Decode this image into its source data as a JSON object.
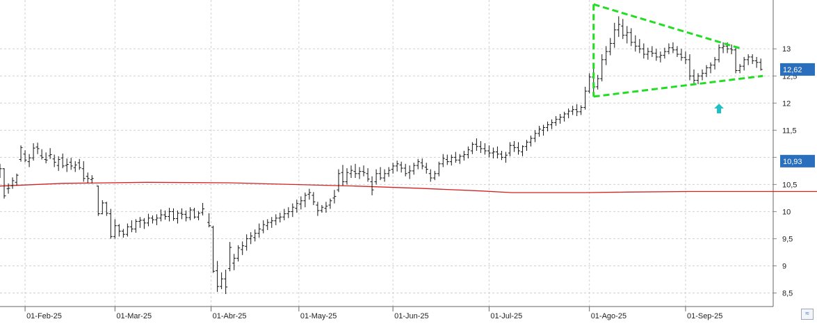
{
  "chart_data": {
    "type": "ohlc",
    "title": "",
    "xlabel": "",
    "ylabel": "",
    "ylim": [
      8.25,
      13.9
    ],
    "y_ticks": [
      "8,5",
      "9",
      "9,5",
      "10",
      "10,5",
      "11",
      "11,5",
      "12",
      "12,5",
      "13"
    ],
    "x_tick_labels": [
      "01-Feb-25",
      "01-Mar-25",
      "01-Abr-25",
      "01-May-25",
      "01-Jun-25",
      "01-Jul-25",
      "01-Ago-25",
      "01-Sep-25"
    ],
    "grid": true,
    "last_price": 12.62,
    "last_price_label": "12,62",
    "moving_average_label": "10,93",
    "moving_average": {
      "color": "#d42020",
      "points": [
        [
          0,
          10.47
        ],
        [
          30,
          10.52
        ],
        [
          70,
          10.54
        ],
        [
          110,
          10.53
        ],
        [
          140,
          10.5
        ],
        [
          170,
          10.47
        ],
        [
          200,
          10.43
        ],
        [
          230,
          10.38
        ],
        [
          245,
          10.35
        ],
        [
          260,
          10.35
        ],
        [
          280,
          10.35
        ],
        [
          300,
          10.36
        ],
        [
          330,
          10.37
        ],
        [
          360,
          10.37
        ],
        [
          390,
          10.37
        ],
        [
          420,
          10.37
        ],
        [
          440,
          10.36
        ],
        [
          460,
          10.37
        ],
        [
          475,
          10.4
        ],
        [
          490,
          10.43
        ],
        [
          505,
          10.5
        ],
        [
          520,
          10.56
        ],
        [
          535,
          10.62
        ],
        [
          550,
          10.68
        ],
        [
          565,
          10.74
        ],
        [
          580,
          10.78
        ],
        [
          595,
          10.82
        ],
        [
          610,
          10.87
        ],
        [
          630,
          10.93
        ]
      ]
    },
    "ohlc_bars": [
      [
        0,
        10.71,
        10.88,
        10.62,
        10.79
      ],
      [
        2,
        10.79,
        10.8,
        10.24,
        10.29
      ],
      [
        4,
        10.42,
        10.52,
        10.33,
        10.43
      ],
      [
        6,
        10.48,
        10.63,
        10.42,
        10.57
      ],
      [
        8,
        10.54,
        10.7,
        10.48,
        10.67
      ],
      [
        10,
        10.96,
        11.22,
        10.92,
        11.18
      ],
      [
        12,
        11.06,
        11.13,
        10.91,
        10.95
      ],
      [
        14,
        10.92,
        11.06,
        10.82,
        10.99
      ],
      [
        16,
        10.99,
        11.26,
        10.94,
        11.17
      ],
      [
        18,
        11.19,
        11.27,
        11.06,
        11.16
      ],
      [
        20,
        11.03,
        11.15,
        10.96,
        11.0
      ],
      [
        22,
        10.96,
        11.09,
        10.89,
        10.95
      ],
      [
        24,
        11.03,
        11.17,
        10.97,
        11.05
      ],
      [
        26,
        10.97,
        11.05,
        10.82,
        10.91
      ],
      [
        28,
        10.85,
        11.02,
        10.75,
        10.96
      ],
      [
        30,
        10.99,
        11.07,
        10.8,
        10.84
      ],
      [
        32,
        10.85,
        10.98,
        10.73,
        10.87
      ],
      [
        34,
        10.91,
        10.99,
        10.77,
        10.84
      ],
      [
        36,
        10.81,
        10.93,
        10.73,
        10.86
      ],
      [
        38,
        10.9,
        10.97,
        10.77,
        10.81
      ],
      [
        40,
        10.79,
        10.93,
        10.55,
        10.61
      ],
      [
        42,
        10.65,
        10.72,
        10.53,
        10.61
      ],
      [
        44,
        10.59,
        10.67,
        10.52,
        10.61
      ],
      [
        47,
        10.47,
        10.48,
        9.92,
        9.96
      ],
      [
        49,
        9.96,
        10.21,
        9.95,
        10.16
      ],
      [
        51,
        10.16,
        10.18,
        9.92,
        9.97
      ],
      [
        53,
        9.96,
        10.05,
        9.5,
        9.54
      ],
      [
        55,
        9.54,
        9.86,
        9.5,
        9.74
      ],
      [
        57,
        9.74,
        9.77,
        9.54,
        9.64
      ],
      [
        59,
        9.64,
        9.68,
        9.52,
        9.58
      ],
      [
        61,
        9.58,
        9.78,
        9.54,
        9.72
      ],
      [
        63,
        9.72,
        9.84,
        9.62,
        9.68
      ],
      [
        65,
        9.68,
        9.86,
        9.61,
        9.82
      ],
      [
        67,
        9.82,
        9.9,
        9.7,
        9.84
      ],
      [
        69,
        9.84,
        9.88,
        9.68,
        9.79
      ],
      [
        71,
        9.79,
        9.96,
        9.73,
        9.88
      ],
      [
        73,
        9.88,
        9.93,
        9.78,
        9.85
      ],
      [
        75,
        9.85,
        9.95,
        9.75,
        9.88
      ],
      [
        77,
        9.88,
        10.04,
        9.82,
        9.94
      ],
      [
        79,
        9.94,
        10.02,
        9.85,
        9.91
      ],
      [
        81,
        9.91,
        10.07,
        9.82,
        10.0
      ],
      [
        83,
        10.0,
        10.06,
        9.83,
        9.87
      ],
      [
        85,
        9.87,
        10.02,
        9.78,
        9.97
      ],
      [
        87,
        9.97,
        10.06,
        9.86,
        9.95
      ],
      [
        89,
        9.95,
        10.02,
        9.82,
        9.89
      ],
      [
        91,
        9.89,
        10.08,
        9.84,
        10.03
      ],
      [
        93,
        10.03,
        10.07,
        9.87,
        9.9
      ],
      [
        95,
        9.9,
        10.01,
        9.84,
        9.97
      ],
      [
        97,
        9.98,
        10.16,
        9.93,
        10.05
      ],
      [
        100,
        9.8,
        9.97,
        9.71,
        9.74
      ],
      [
        102,
        9.71,
        9.74,
        8.87,
        8.9
      ],
      [
        104,
        8.91,
        9.09,
        8.52,
        8.62
      ],
      [
        106,
        8.62,
        8.88,
        8.57,
        8.76
      ],
      [
        108,
        8.76,
        8.93,
        8.48,
        8.61
      ],
      [
        110,
        8.95,
        9.44,
        8.9,
        9.34
      ],
      [
        112,
        9.05,
        9.22,
        8.92,
        9.14
      ],
      [
        114,
        9.14,
        9.38,
        9.08,
        9.33
      ],
      [
        116,
        9.3,
        9.45,
        9.2,
        9.37
      ],
      [
        118,
        9.36,
        9.58,
        9.28,
        9.5
      ],
      [
        120,
        9.5,
        9.62,
        9.4,
        9.55
      ],
      [
        122,
        9.52,
        9.67,
        9.45,
        9.6
      ],
      [
        124,
        9.6,
        9.78,
        9.52,
        9.68
      ],
      [
        126,
        9.66,
        9.84,
        9.6,
        9.76
      ],
      [
        128,
        9.74,
        9.86,
        9.66,
        9.8
      ],
      [
        130,
        9.8,
        9.9,
        9.7,
        9.83
      ],
      [
        132,
        9.83,
        9.95,
        9.75,
        9.88
      ],
      [
        134,
        9.88,
        9.98,
        9.8,
        9.9
      ],
      [
        136,
        9.9,
        10.05,
        9.84,
        9.96
      ],
      [
        138,
        9.96,
        10.08,
        9.88,
        10.0
      ],
      [
        140,
        10.0,
        10.15,
        9.9,
        10.08
      ],
      [
        142,
        10.06,
        10.22,
        9.98,
        10.15
      ],
      [
        144,
        10.14,
        10.28,
        10.04,
        10.2
      ],
      [
        146,
        10.2,
        10.35,
        10.08,
        10.3
      ],
      [
        148,
        10.32,
        10.42,
        10.22,
        10.35
      ],
      [
        150,
        10.3,
        10.36,
        10.12,
        10.18
      ],
      [
        152,
        10.12,
        10.18,
        9.92,
        10.02
      ],
      [
        154,
        10.02,
        10.12,
        9.98,
        10.08
      ],
      [
        156,
        10.06,
        10.18,
        9.98,
        10.1
      ],
      [
        158,
        10.12,
        10.24,
        10.05,
        10.2
      ],
      [
        160,
        10.25,
        10.4,
        10.15,
        10.28
      ],
      [
        162,
        10.4,
        10.78,
        10.36,
        10.7
      ],
      [
        164,
        10.72,
        10.86,
        10.48,
        10.55
      ],
      [
        166,
        10.55,
        10.8,
        10.5,
        10.72
      ],
      [
        168,
        10.7,
        10.85,
        10.62,
        10.76
      ],
      [
        170,
        10.74,
        10.88,
        10.62,
        10.7
      ],
      [
        172,
        10.7,
        10.82,
        10.6,
        10.74
      ],
      [
        174,
        10.74,
        10.85,
        10.65,
        10.72
      ],
      [
        176,
        10.7,
        10.8,
        10.55,
        10.6
      ],
      [
        178,
        10.55,
        10.65,
        10.3,
        10.4
      ],
      [
        180,
        10.55,
        10.78,
        10.5,
        10.7
      ],
      [
        182,
        10.7,
        10.82,
        10.58,
        10.62
      ],
      [
        184,
        10.62,
        10.78,
        10.55,
        10.7
      ],
      [
        186,
        10.7,
        10.82,
        10.64,
        10.76
      ],
      [
        188,
        10.78,
        10.9,
        10.7,
        10.84
      ],
      [
        190,
        10.84,
        10.94,
        10.74,
        10.88
      ],
      [
        192,
        10.86,
        10.92,
        10.72,
        10.8
      ],
      [
        194,
        10.8,
        10.88,
        10.65,
        10.7
      ],
      [
        196,
        10.72,
        10.85,
        10.6,
        10.75
      ],
      [
        198,
        10.75,
        10.9,
        10.68,
        10.85
      ],
      [
        200,
        10.85,
        10.97,
        10.78,
        10.92
      ],
      [
        202,
        10.9,
        10.98,
        10.78,
        10.84
      ],
      [
        204,
        10.82,
        10.9,
        10.7,
        10.78
      ],
      [
        206,
        10.7,
        10.78,
        10.55,
        10.62
      ],
      [
        208,
        10.62,
        10.75,
        10.58,
        10.7
      ],
      [
        210,
        10.7,
        10.92,
        10.65,
        10.88
      ],
      [
        212,
        10.88,
        11.06,
        10.82,
        10.98
      ],
      [
        214,
        10.96,
        11.05,
        10.86,
        10.92
      ],
      [
        216,
        10.92,
        11.05,
        10.85,
        11.0
      ],
      [
        218,
        11.0,
        11.1,
        10.9,
        10.95
      ],
      [
        220,
        10.95,
        11.06,
        10.88,
        11.02
      ],
      [
        222,
        11.02,
        11.12,
        10.94,
        11.05
      ],
      [
        224,
        11.05,
        11.2,
        10.98,
        11.14
      ],
      [
        226,
        11.12,
        11.28,
        11.06,
        11.24
      ],
      [
        228,
        11.24,
        11.35,
        11.12,
        11.2
      ],
      [
        230,
        11.2,
        11.3,
        11.08,
        11.16
      ],
      [
        232,
        11.16,
        11.26,
        11.05,
        11.12
      ],
      [
        234,
        11.12,
        11.22,
        11.0,
        11.08
      ],
      [
        236,
        11.08,
        11.18,
        10.98,
        11.1
      ],
      [
        238,
        11.1,
        11.2,
        10.98,
        11.06
      ],
      [
        240,
        11.06,
        11.12,
        10.95,
        11.0
      ],
      [
        242,
        11.0,
        11.1,
        10.9,
        11.04
      ],
      [
        244,
        11.08,
        11.28,
        11.02,
        11.22
      ],
      [
        246,
        11.22,
        11.3,
        11.1,
        11.18
      ],
      [
        248,
        11.18,
        11.28,
        11.05,
        11.12
      ],
      [
        250,
        11.1,
        11.22,
        11.02,
        11.2
      ],
      [
        252,
        11.2,
        11.32,
        11.12,
        11.28
      ],
      [
        254,
        11.28,
        11.4,
        11.2,
        11.35
      ],
      [
        256,
        11.35,
        11.5,
        11.28,
        11.44
      ],
      [
        258,
        11.44,
        11.58,
        11.38,
        11.52
      ],
      [
        260,
        11.5,
        11.6,
        11.4,
        11.55
      ],
      [
        262,
        11.55,
        11.66,
        11.48,
        11.6
      ],
      [
        264,
        11.6,
        11.7,
        11.52,
        11.64
      ],
      [
        266,
        11.64,
        11.76,
        11.58,
        11.7
      ],
      [
        268,
        11.7,
        11.8,
        11.62,
        11.74
      ],
      [
        270,
        11.74,
        11.84,
        11.66,
        11.8
      ],
      [
        272,
        11.8,
        11.9,
        11.72,
        11.85
      ],
      [
        274,
        11.85,
        11.95,
        11.78,
        11.88
      ],
      [
        276,
        11.88,
        11.98,
        11.76,
        11.84
      ],
      [
        278,
        11.84,
        11.96,
        11.78,
        11.92
      ],
      [
        280,
        11.92,
        12.3,
        11.88,
        12.22
      ],
      [
        282,
        12.22,
        12.55,
        12.18,
        12.48
      ],
      [
        284,
        12.48,
        12.65,
        12.2,
        12.3
      ],
      [
        286,
        12.3,
        12.52,
        12.25,
        12.45
      ],
      [
        288,
        12.45,
        12.9,
        12.4,
        12.8
      ],
      [
        290,
        12.8,
        13.05,
        12.7,
        12.95
      ],
      [
        292,
        12.95,
        13.2,
        12.88,
        13.1
      ],
      [
        294,
        13.1,
        13.48,
        13.02,
        13.35
      ],
      [
        296,
        13.35,
        13.6,
        13.22,
        13.45
      ],
      [
        298,
        13.42,
        13.55,
        13.18,
        13.25
      ],
      [
        300,
        13.25,
        13.42,
        13.1,
        13.3
      ],
      [
        302,
        13.3,
        13.38,
        13.05,
        13.12
      ],
      [
        304,
        13.12,
        13.25,
        12.95,
        13.05
      ],
      [
        306,
        13.05,
        13.18,
        12.92,
        13.0
      ],
      [
        308,
        13.0,
        13.1,
        12.82,
        12.9
      ],
      [
        310,
        12.9,
        13.02,
        12.8,
        12.95
      ],
      [
        312,
        12.95,
        13.05,
        12.85,
        12.92
      ],
      [
        314,
        12.92,
        13.0,
        12.78,
        12.85
      ],
      [
        316,
        12.85,
        12.95,
        12.75,
        12.88
      ],
      [
        318,
        12.88,
        13.02,
        12.82,
        12.95
      ],
      [
        320,
        12.95,
        13.1,
        12.9,
        13.02
      ],
      [
        322,
        13.02,
        13.12,
        12.92,
        12.98
      ],
      [
        324,
        12.98,
        13.05,
        12.85,
        12.9
      ],
      [
        326,
        12.9,
        13.0,
        12.78,
        12.84
      ],
      [
        328,
        12.84,
        12.95,
        12.72,
        12.8
      ],
      [
        330,
        12.8,
        12.9,
        12.42,
        12.5
      ],
      [
        332,
        12.5,
        12.62,
        12.35,
        12.42
      ],
      [
        334,
        12.42,
        12.55,
        12.35,
        12.5
      ],
      [
        336,
        12.5,
        12.62,
        12.42,
        12.55
      ],
      [
        338,
        12.55,
        12.7,
        12.48,
        12.65
      ],
      [
        340,
        12.65,
        12.75,
        12.55,
        12.7
      ],
      [
        342,
        12.7,
        12.85,
        12.62,
        12.8
      ],
      [
        344,
        12.8,
        13.08,
        12.75,
        13.02
      ],
      [
        346,
        13.02,
        13.12,
        12.92,
        13.05
      ],
      [
        348,
        13.05,
        13.12,
        12.92,
        13.0
      ],
      [
        350,
        13.0,
        13.08,
        12.9,
        12.98
      ],
      [
        352,
        12.98,
        13.02,
        12.55,
        12.6
      ],
      [
        354,
        12.6,
        12.72,
        12.55,
        12.68
      ],
      [
        356,
        12.68,
        12.85,
        12.6,
        12.8
      ],
      [
        358,
        12.8,
        12.9,
        12.7,
        12.85
      ],
      [
        360,
        12.85,
        12.9,
        12.72,
        12.78
      ],
      [
        362,
        12.78,
        12.85,
        12.65,
        12.75
      ],
      [
        364,
        12.75,
        12.82,
        12.6,
        12.62
      ]
    ],
    "pattern_lines": [
      {
        "color": "#22dd22",
        "from": [
          284,
          13.82
        ],
        "to": [
          355,
          13.0
        ]
      },
      {
        "color": "#22dd22",
        "from": [
          284,
          12.12
        ],
        "to": [
          365,
          12.5
        ]
      },
      {
        "color": "#22dd22",
        "from": [
          284,
          13.82
        ],
        "to": [
          284,
          12.12
        ]
      }
    ],
    "marker": {
      "shape": "up-arrow",
      "color": "#1fbfc4",
      "x": 344,
      "y": 11.9
    }
  },
  "colors": {
    "bars": "#111111",
    "grid": "#d0d0d0",
    "price_box": "#2a6fbd",
    "ma_box": "#2a6fbd",
    "pattern": "#22dd22",
    "ma": "#d42020"
  }
}
